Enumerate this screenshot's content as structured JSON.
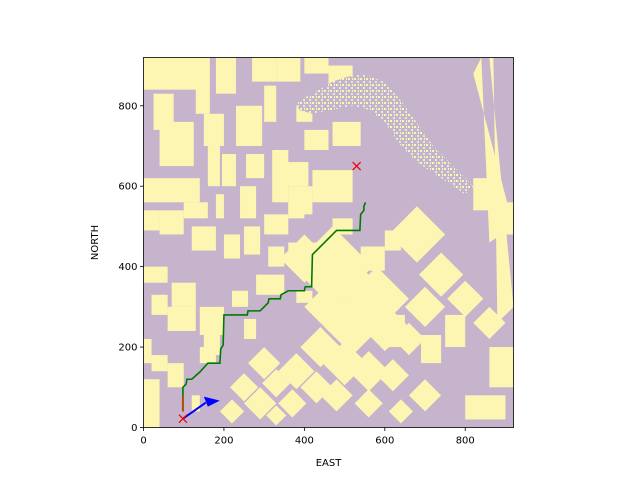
{
  "chart_data": {
    "type": "heatmap",
    "title": "",
    "xlabel": "EAST",
    "ylabel": "NORTH",
    "xlim": [
      0,
      920
    ],
    "ylim": [
      0,
      920
    ],
    "xticks": [
      0,
      200,
      400,
      600,
      800
    ],
    "yticks": [
      0,
      200,
      400,
      600,
      800
    ],
    "grid": false,
    "colors": {
      "free_space": "#c6b3cc",
      "obstacle": "#fdf6b3",
      "path": "#007a00",
      "marker": "#ee0000",
      "vector": "#0000ff"
    },
    "path": {
      "name": "",
      "points": [
        [
          98,
          40
        ],
        [
          98,
          100
        ],
        [
          106,
          108
        ],
        [
          108,
          120
        ],
        [
          120,
          120
        ],
        [
          140,
          138
        ],
        [
          160,
          160
        ],
        [
          190,
          160
        ],
        [
          192,
          195
        ],
        [
          198,
          205
        ],
        [
          200,
          280
        ],
        [
          258,
          280
        ],
        [
          260,
          290
        ],
        [
          290,
          290
        ],
        [
          310,
          310
        ],
        [
          312,
          320
        ],
        [
          340,
          320
        ],
        [
          342,
          330
        ],
        [
          360,
          340
        ],
        [
          400,
          340
        ],
        [
          402,
          350
        ],
        [
          418,
          350
        ],
        [
          420,
          430
        ],
        [
          440,
          450
        ],
        [
          480,
          490
        ],
        [
          538,
          490
        ],
        [
          540,
          530
        ],
        [
          548,
          540
        ],
        [
          548,
          550
        ],
        [
          552,
          560
        ]
      ]
    },
    "start_marker": {
      "x": 98,
      "y": 22,
      "shape": "x"
    },
    "goal_marker": {
      "x": 530,
      "y": 650,
      "shape": "x"
    },
    "start_arrow": {
      "x": 98,
      "y": 40,
      "dx": 0,
      "dy": 38,
      "color": "#b05000"
    },
    "heading_arrow": {
      "x": 98,
      "y": 22,
      "dx": 150,
      "dy": 40
    },
    "obstacles": [
      [
        0,
        135,
        840,
        920
      ],
      [
        25,
        75,
        740,
        830
      ],
      [
        40,
        125,
        650,
        760
      ],
      [
        130,
        165,
        780,
        920
      ],
      [
        150,
        200,
        700,
        780
      ],
      [
        180,
        230,
        830,
        920
      ],
      [
        160,
        190,
        600,
        700
      ],
      [
        195,
        230,
        600,
        680
      ],
      [
        230,
        295,
        700,
        800
      ],
      [
        240,
        280,
        520,
        600
      ],
      [
        255,
        300,
        620,
        680
      ],
      [
        300,
        330,
        760,
        850
      ],
      [
        320,
        360,
        560,
        690
      ],
      [
        350,
        410,
        600,
        660
      ],
      [
        270,
        330,
        860,
        920
      ],
      [
        330,
        390,
        860,
        920
      ],
      [
        400,
        460,
        880,
        920
      ],
      [
        460,
        520,
        830,
        900
      ],
      [
        380,
        420,
        760,
        800
      ],
      [
        400,
        460,
        690,
        740
      ],
      [
        470,
        540,
        700,
        760
      ],
      [
        0,
        140,
        560,
        620
      ],
      [
        0,
        40,
        490,
        540
      ],
      [
        40,
        100,
        480,
        540
      ],
      [
        100,
        160,
        520,
        560
      ],
      [
        120,
        180,
        440,
        500
      ],
      [
        200,
        240,
        420,
        480
      ],
      [
        180,
        200,
        520,
        580
      ],
      [
        250,
        290,
        430,
        500
      ],
      [
        300,
        360,
        480,
        530
      ],
      [
        360,
        420,
        530,
        600
      ],
      [
        420,
        460,
        560,
        640
      ],
      [
        460,
        520,
        560,
        640
      ],
      [
        310,
        350,
        400,
        450
      ],
      [
        360,
        400,
        400,
        460
      ],
      [
        280,
        350,
        330,
        380
      ],
      [
        380,
        420,
        310,
        340
      ],
      [
        420,
        470,
        420,
        460
      ],
      [
        0,
        60,
        360,
        400
      ],
      [
        70,
        130,
        300,
        360
      ],
      [
        20,
        60,
        280,
        330
      ],
      [
        60,
        130,
        240,
        300
      ],
      [
        140,
        200,
        230,
        300
      ],
      [
        150,
        190,
        180,
        230
      ],
      [
        0,
        20,
        160,
        220
      ],
      [
        20,
        60,
        140,
        180
      ],
      [
        0,
        40,
        0,
        120
      ],
      [
        60,
        100,
        100,
        160
      ],
      [
        120,
        140,
        40,
        80
      ],
      [
        140,
        180,
        160,
        200
      ],
      [
        220,
        260,
        300,
        340
      ],
      [
        250,
        280,
        220,
        270
      ],
      [
        520,
        570,
        330,
        370
      ],
      [
        600,
        650,
        200,
        280
      ],
      [
        540,
        600,
        390,
        450
      ],
      [
        600,
        640,
        440,
        490
      ],
      [
        690,
        740,
        160,
        230
      ],
      [
        750,
        800,
        200,
        280
      ],
      [
        800,
        900,
        20,
        80
      ],
      [
        860,
        920,
        100,
        200
      ],
      [
        820,
        880,
        540,
        620
      ],
      [
        900,
        920,
        480,
        560
      ],
      [
        470,
        520,
        480,
        520
      ],
      [
        360,
        400,
        520,
        560
      ]
    ],
    "diag_blocks": [
      [
        400,
        420,
        60,
        0
      ],
      [
        470,
        400,
        100,
        0
      ],
      [
        530,
        350,
        60,
        0
      ],
      [
        580,
        320,
        80,
        0
      ],
      [
        460,
        300,
        60,
        0
      ],
      [
        520,
        250,
        70,
        0
      ],
      [
        600,
        250,
        60,
        0
      ],
      [
        440,
        200,
        50,
        0
      ],
      [
        500,
        160,
        55,
        0
      ],
      [
        560,
        140,
        50,
        0
      ],
      [
        380,
        140,
        45,
        0
      ],
      [
        430,
        100,
        40,
        0
      ],
      [
        480,
        80,
        40,
        0
      ],
      [
        300,
        160,
        40,
        0
      ],
      [
        330,
        110,
        35,
        0
      ],
      [
        370,
        60,
        35,
        0
      ],
      [
        250,
        100,
        35,
        0
      ],
      [
        290,
        60,
        40,
        0
      ],
      [
        220,
        40,
        30,
        0
      ],
      [
        330,
        30,
        25,
        0
      ],
      [
        680,
        480,
        70,
        0
      ],
      [
        740,
        380,
        55,
        0
      ],
      [
        800,
        320,
        45,
        0
      ],
      [
        860,
        260,
        40,
        0
      ],
      [
        700,
        300,
        50,
        0
      ],
      [
        660,
        220,
        40,
        0
      ],
      [
        620,
        130,
        40,
        0
      ],
      [
        700,
        80,
        40,
        0
      ],
      [
        560,
        60,
        35,
        0
      ],
      [
        640,
        40,
        30,
        0
      ]
    ],
    "bands": [
      [
        840,
        920,
        820,
        880,
        920,
        500,
        860,
        460
      ],
      [
        870,
        920,
        860,
        920,
        920,
        300,
        880,
        260
      ]
    ]
  }
}
